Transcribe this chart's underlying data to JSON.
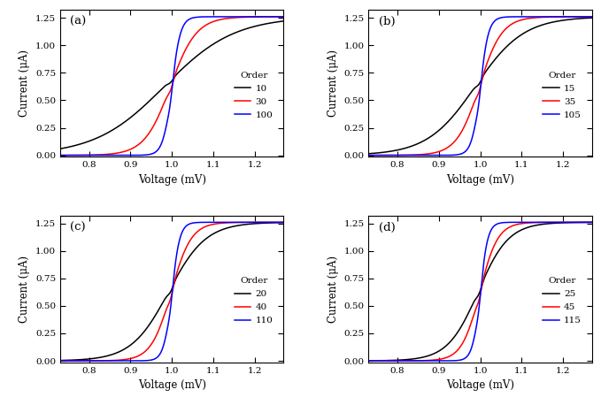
{
  "panels": [
    {
      "label": "(a)",
      "orders": [
        10,
        30,
        100
      ],
      "legend_labels": [
        "10",
        "30",
        "100"
      ]
    },
    {
      "label": "(b)",
      "orders": [
        15,
        35,
        105
      ],
      "legend_labels": [
        "15",
        "35",
        "105"
      ]
    },
    {
      "label": "(c)",
      "orders": [
        20,
        40,
        110
      ],
      "legend_labels": [
        "20",
        "40",
        "110"
      ]
    },
    {
      "label": "(d)",
      "orders": [
        25,
        45,
        115
      ],
      "legend_labels": [
        "25",
        "45",
        "115"
      ]
    }
  ],
  "colors": [
    "black",
    "red",
    "blue"
  ],
  "xlabel": "Voltage (mV)",
  "ylabel": "Current (μA)",
  "xlim": [
    0.73,
    1.27
  ],
  "ylim": [
    -0.015,
    1.32
  ],
  "xticks": [
    0.8,
    0.9,
    1.0,
    1.1,
    1.2
  ],
  "yticks": [
    0.0,
    0.25,
    0.5,
    0.75,
    1.0,
    1.25
  ],
  "I_max": 1.26,
  "V0": 1.0,
  "legend_title": "Order",
  "linewidth": 1.1
}
